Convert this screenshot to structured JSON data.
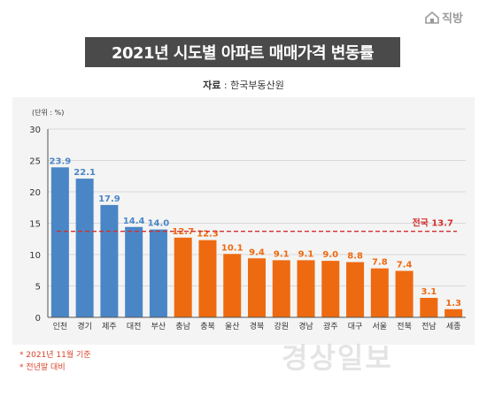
{
  "logo": {
    "text": "직방"
  },
  "title": "2021년 시도별 아파트 매매가격 변동률",
  "source": {
    "label": "자료",
    "separator": " : ",
    "value": "한국부동산원"
  },
  "notes": [
    "* 2021년 11월 기준",
    "* 전년말 대비"
  ],
  "watermark": "경상일보",
  "colors": {
    "blue": "#4a86c6",
    "orange": "#ee6a10",
    "reference_line": "#d32f2f",
    "grid": "#cfcfcf",
    "panel": "#f4f4f4"
  },
  "chart_data": {
    "type": "bar",
    "unit_label": "(단위 : %)",
    "categories": [
      "인천",
      "경기",
      "제주",
      "대전",
      "부산",
      "충남",
      "충북",
      "울산",
      "경북",
      "강원",
      "경남",
      "광주",
      "대구",
      "서울",
      "전북",
      "전남",
      "세종"
    ],
    "values": [
      23.9,
      22.1,
      17.9,
      14.4,
      14.0,
      12.7,
      12.3,
      10.1,
      9.4,
      9.1,
      9.1,
      9.0,
      8.8,
      7.8,
      7.4,
      3.1,
      1.3
    ],
    "value_labels": [
      "23.9",
      "22.1",
      "17.9",
      "14.4",
      "14.0",
      "12.7",
      "12.3",
      "10.1",
      "9.4",
      "9.1",
      "9.1",
      "9.0",
      "8.8",
      "7.8",
      "7.4",
      "3.1",
      "1.3"
    ],
    "bar_colors": [
      "blue",
      "blue",
      "blue",
      "blue",
      "blue",
      "orange",
      "orange",
      "orange",
      "orange",
      "orange",
      "orange",
      "orange",
      "orange",
      "orange",
      "orange",
      "orange",
      "orange"
    ],
    "ylim": [
      0,
      30
    ],
    "yticks": [
      0,
      5,
      10,
      15,
      20,
      25,
      30
    ],
    "reference": {
      "label": "전국 13.7",
      "value": 13.7
    },
    "grid": true,
    "legend": "none"
  }
}
